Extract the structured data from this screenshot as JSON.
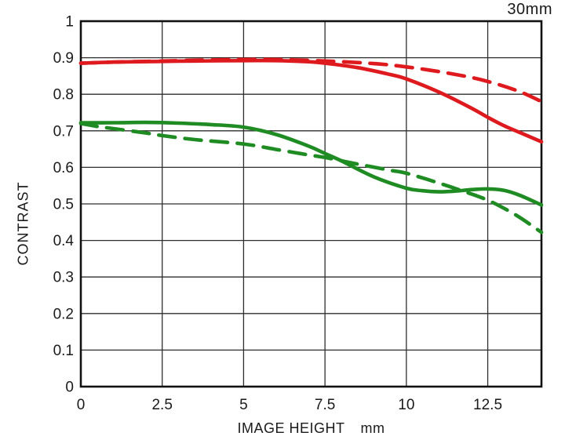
{
  "chart": {
    "title": "30mm",
    "ylabel": "CONTRAST",
    "xlabel": "IMAGE HEIGHT",
    "x_unit": "mm"
  },
  "chart_data": {
    "type": "line",
    "title": "30mm",
    "xlabel": "IMAGE HEIGHT mm",
    "ylabel": "CONTRAST",
    "xlim": [
      0,
      14.15
    ],
    "ylim": [
      0,
      1
    ],
    "x_ticks": [
      0,
      2.5,
      5,
      7.5,
      10,
      12.5
    ],
    "x_tick_labels": [
      "0",
      "2.5",
      "5",
      "7.5",
      "10",
      "12.5"
    ],
    "y_ticks": [
      0,
      0.1,
      0.2,
      0.3,
      0.4,
      0.5,
      0.6,
      0.7,
      0.8,
      0.9,
      1
    ],
    "y_tick_labels": [
      "0",
      "0.1",
      "0.2",
      "0.3",
      "0.4",
      "0.5",
      "0.6",
      "0.7",
      "0.8",
      "0.9",
      "1"
    ],
    "grid": true,
    "legend": "none",
    "colors": {
      "red": "#de1a1f",
      "green": "#1f8b23",
      "grid": "#2e2e2e",
      "border": "#111111",
      "text": "#1a1a1a"
    },
    "series": [
      {
        "name": "green-dashed",
        "color": "#1f8b23",
        "style": "dashed",
        "points": [
          [
            0,
            0.72
          ],
          [
            0.5,
            0.712
          ],
          [
            1,
            0.706
          ],
          [
            2,
            0.694
          ],
          [
            2.5,
            0.687
          ],
          [
            3.5,
            0.676
          ],
          [
            5,
            0.664
          ],
          [
            6,
            0.649
          ],
          [
            7,
            0.634
          ],
          [
            7.5,
            0.627
          ],
          [
            8.5,
            0.609
          ],
          [
            9.5,
            0.592
          ],
          [
            10,
            0.584
          ],
          [
            11,
            0.557
          ],
          [
            12,
            0.527
          ],
          [
            12.5,
            0.51
          ],
          [
            13,
            0.488
          ],
          [
            13.5,
            0.462
          ],
          [
            14.15,
            0.422
          ]
        ]
      },
      {
        "name": "green-solid",
        "color": "#1f8b23",
        "style": "solid",
        "points": [
          [
            0,
            0.722
          ],
          [
            1,
            0.722
          ],
          [
            2,
            0.723
          ],
          [
            3,
            0.721
          ],
          [
            4,
            0.717
          ],
          [
            5,
            0.71
          ],
          [
            6,
            0.69
          ],
          [
            7,
            0.658
          ],
          [
            7.5,
            0.638
          ],
          [
            8,
            0.618
          ],
          [
            9,
            0.574
          ],
          [
            10,
            0.543
          ],
          [
            10.5,
            0.536
          ],
          [
            11,
            0.533
          ],
          [
            11.5,
            0.535
          ],
          [
            12,
            0.539
          ],
          [
            12.5,
            0.541
          ],
          [
            13,
            0.537
          ],
          [
            13.5,
            0.523
          ],
          [
            14.15,
            0.497
          ]
        ]
      },
      {
        "name": "red-dashed",
        "color": "#de1a1f",
        "style": "dashed",
        "points": [
          [
            0,
            0.885
          ],
          [
            1,
            0.888
          ],
          [
            2.5,
            0.891
          ],
          [
            4,
            0.894
          ],
          [
            5,
            0.895
          ],
          [
            6,
            0.895
          ],
          [
            7.5,
            0.891
          ],
          [
            9,
            0.884
          ],
          [
            10,
            0.875
          ],
          [
            11,
            0.862
          ],
          [
            12,
            0.846
          ],
          [
            12.5,
            0.835
          ],
          [
            13,
            0.822
          ],
          [
            13.6,
            0.803
          ],
          [
            14.15,
            0.78
          ]
        ]
      },
      {
        "name": "red-solid",
        "color": "#de1a1f",
        "style": "solid",
        "points": [
          [
            0,
            0.885
          ],
          [
            1,
            0.888
          ],
          [
            2.5,
            0.89
          ],
          [
            3.5,
            0.891
          ],
          [
            5,
            0.892
          ],
          [
            6,
            0.892
          ],
          [
            7,
            0.889
          ],
          [
            7.5,
            0.885
          ],
          [
            8.5,
            0.873
          ],
          [
            9.5,
            0.854
          ],
          [
            10,
            0.842
          ],
          [
            11,
            0.806
          ],
          [
            12,
            0.762
          ],
          [
            12.5,
            0.737
          ],
          [
            13,
            0.714
          ],
          [
            13.6,
            0.691
          ],
          [
            14.15,
            0.67
          ]
        ]
      }
    ]
  }
}
